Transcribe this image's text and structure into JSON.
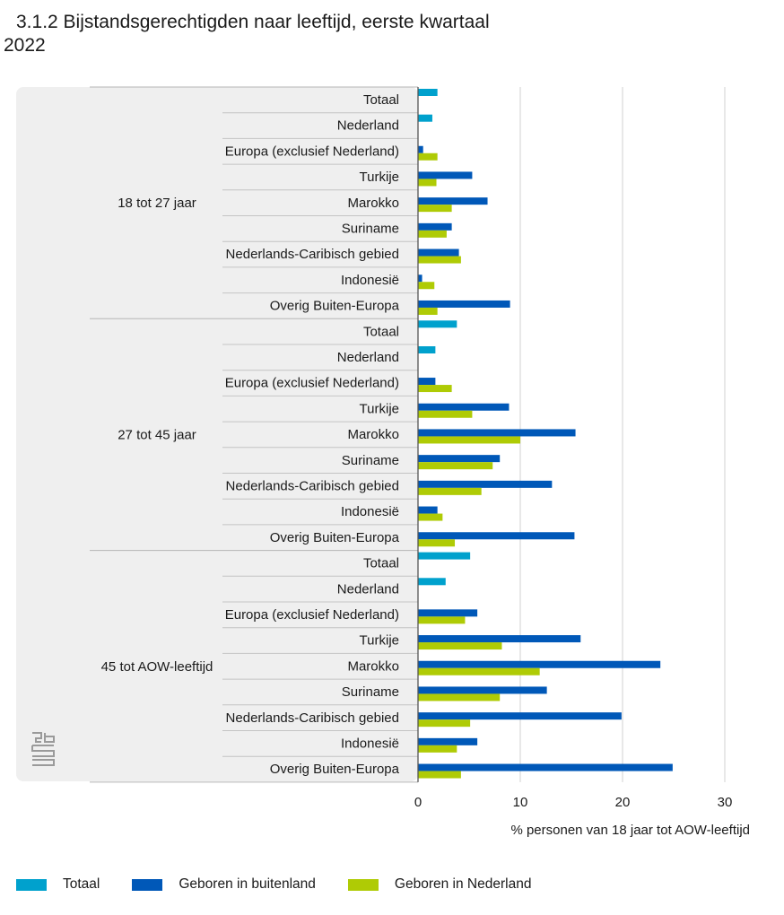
{
  "title_line1": "3.1.2 Bijstandsgerechtigden naar leeftijd, eerste kwartaal",
  "title_line2": "2022",
  "chart_data": {
    "type": "bar",
    "orientation": "horizontal",
    "xlabel": "% personen van 18 jaar tot AOW-leeftijd",
    "xlim": [
      0,
      30
    ],
    "xticks": [
      0,
      10,
      20,
      30
    ],
    "grid": "vertical",
    "legend_position": "bottom",
    "groups": [
      {
        "label": "18 tot 27 jaar",
        "rows": [
          {
            "label": "Totaal",
            "values": {
              "Totaal": 1.9
            }
          },
          {
            "label": "Nederland",
            "values": {
              "Totaal": 1.4
            }
          },
          {
            "label": "Europa (exclusief Nederland)",
            "values": {
              "Geboren in buitenland": 0.5,
              "Geboren in Nederland": 1.9
            }
          },
          {
            "label": "Turkije",
            "values": {
              "Geboren in buitenland": 5.3,
              "Geboren in Nederland": 1.8
            }
          },
          {
            "label": "Marokko",
            "values": {
              "Geboren in buitenland": 6.8,
              "Geboren in Nederland": 3.3
            }
          },
          {
            "label": "Suriname",
            "values": {
              "Geboren in buitenland": 3.3,
              "Geboren in Nederland": 2.8
            }
          },
          {
            "label": "Nederlands-Caribisch gebied",
            "values": {
              "Geboren in buitenland": 4.0,
              "Geboren in Nederland": 4.2
            }
          },
          {
            "label": "Indonesië",
            "values": {
              "Geboren in buitenland": 0.4,
              "Geboren in Nederland": 1.6
            }
          },
          {
            "label": "Overig Buiten-Europa",
            "values": {
              "Geboren in buitenland": 9.0,
              "Geboren in Nederland": 1.9
            }
          }
        ]
      },
      {
        "label": "27 tot 45 jaar",
        "rows": [
          {
            "label": "Totaal",
            "values": {
              "Totaal": 3.8
            }
          },
          {
            "label": "Nederland",
            "values": {
              "Totaal": 1.7
            }
          },
          {
            "label": "Europa (exclusief Nederland)",
            "values": {
              "Geboren in buitenland": 1.7,
              "Geboren in Nederland": 3.3
            }
          },
          {
            "label": "Turkije",
            "values": {
              "Geboren in buitenland": 8.9,
              "Geboren in Nederland": 5.3
            }
          },
          {
            "label": "Marokko",
            "values": {
              "Geboren in buitenland": 15.4,
              "Geboren in Nederland": 10.0
            }
          },
          {
            "label": "Suriname",
            "values": {
              "Geboren in buitenland": 8.0,
              "Geboren in Nederland": 7.3
            }
          },
          {
            "label": "Nederlands-Caribisch gebied",
            "values": {
              "Geboren in buitenland": 13.1,
              "Geboren in Nederland": 6.2
            }
          },
          {
            "label": "Indonesië",
            "values": {
              "Geboren in buitenland": 1.9,
              "Geboren in Nederland": 2.4
            }
          },
          {
            "label": "Overig Buiten-Europa",
            "values": {
              "Geboren in buitenland": 15.3,
              "Geboren in Nederland": 3.6
            }
          }
        ]
      },
      {
        "label": "45 tot AOW-leeftijd",
        "rows": [
          {
            "label": "Totaal",
            "values": {
              "Totaal": 5.1
            }
          },
          {
            "label": "Nederland",
            "values": {
              "Totaal": 2.7
            }
          },
          {
            "label": "Europa (exclusief Nederland)",
            "values": {
              "Geboren in buitenland": 5.8,
              "Geboren in Nederland": 4.6
            }
          },
          {
            "label": "Turkije",
            "values": {
              "Geboren in buitenland": 15.9,
              "Geboren in Nederland": 8.2
            }
          },
          {
            "label": "Marokko",
            "values": {
              "Geboren in buitenland": 23.7,
              "Geboren in Nederland": 11.9
            }
          },
          {
            "label": "Suriname",
            "values": {
              "Geboren in buitenland": 12.6,
              "Geboren in Nederland": 8.0
            }
          },
          {
            "label": "Nederlands-Caribisch gebied",
            "values": {
              "Geboren in buitenland": 19.9,
              "Geboren in Nederland": 5.1
            }
          },
          {
            "label": "Indonesië",
            "values": {
              "Geboren in buitenland": 5.8,
              "Geboren in Nederland": 3.8
            }
          },
          {
            "label": "Overig Buiten-Europa",
            "values": {
              "Geboren in buitenland": 24.9,
              "Geboren in Nederland": 4.2
            }
          }
        ]
      }
    ],
    "series": [
      {
        "name": "Totaal",
        "color": "#00a1cd"
      },
      {
        "name": "Geboren in buitenland",
        "color": "#0058b8"
      },
      {
        "name": "Geboren in Nederland",
        "color": "#afcb05"
      }
    ]
  }
}
